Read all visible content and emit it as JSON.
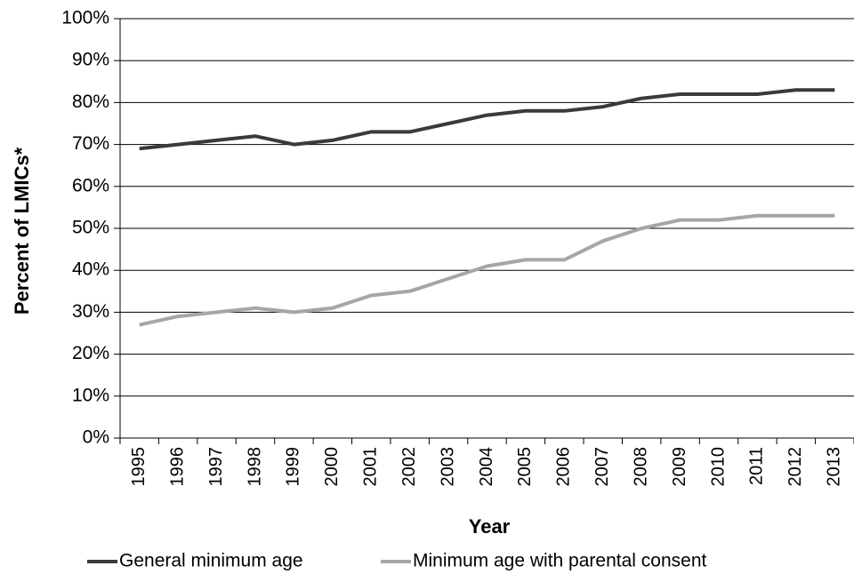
{
  "chart_data": {
    "type": "line",
    "title": "",
    "xlabel": "Year",
    "ylabel": "Percent of LMICs*",
    "ylim": [
      0,
      100
    ],
    "y_ticks": [
      "0%",
      "10%",
      "20%",
      "30%",
      "40%",
      "50%",
      "60%",
      "70%",
      "80%",
      "90%",
      "100%"
    ],
    "y_tick_values": [
      0,
      10,
      20,
      30,
      40,
      50,
      60,
      70,
      80,
      90,
      100
    ],
    "grid": true,
    "legend_position": "bottom",
    "categories": [
      "1995",
      "1996",
      "1997",
      "1998",
      "1999",
      "2000",
      "2001",
      "2002",
      "2003",
      "2004",
      "2005",
      "2006",
      "2007",
      "2008",
      "2009",
      "2010",
      "2011",
      "2012",
      "2013"
    ],
    "series": [
      {
        "name": "General minimum age",
        "color": "#3a3a3a",
        "values": [
          69,
          70,
          71,
          72,
          70,
          71,
          73,
          73,
          75,
          77,
          78,
          78,
          79,
          81,
          82,
          82,
          82,
          83,
          83
        ]
      },
      {
        "name": "Minimum age with parental consent",
        "color": "#a6a6a6",
        "values": [
          27,
          29,
          30,
          31,
          30,
          31,
          34,
          35,
          38,
          41,
          42.5,
          42.5,
          47,
          50,
          52,
          52,
          53,
          53,
          53
        ]
      }
    ]
  }
}
